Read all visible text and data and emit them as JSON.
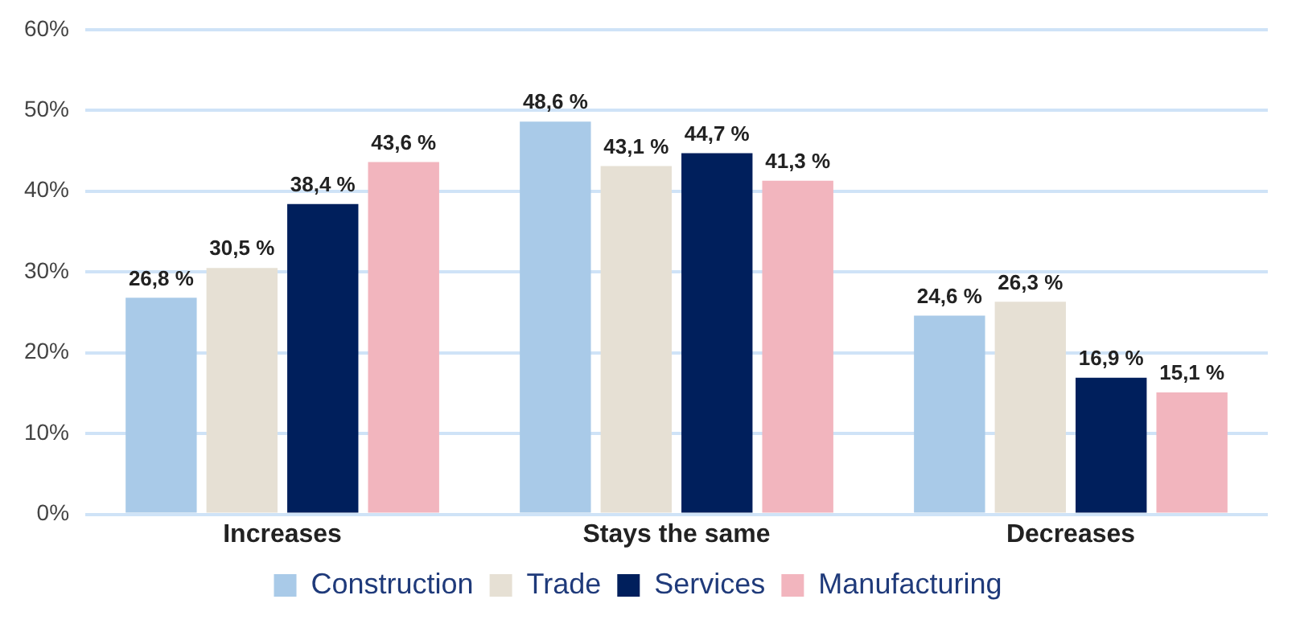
{
  "chart_data": {
    "type": "bar",
    "categories": [
      "Increases",
      "Stays the same",
      "Decreases"
    ],
    "series": [
      {
        "name": "Construction",
        "color": "#a9cae8",
        "values": [
          26.8,
          48.6,
          24.6
        ],
        "value_labels": [
          "26,8 %",
          "48,6 %",
          "24,6 %"
        ]
      },
      {
        "name": "Trade",
        "color": "#e6e0d4",
        "values": [
          30.5,
          43.1,
          26.3
        ],
        "value_labels": [
          "30,5 %",
          "43,1 %",
          "26,3 %"
        ]
      },
      {
        "name": "Services",
        "color": "#001f5c",
        "values": [
          38.4,
          44.7,
          16.9
        ],
        "value_labels": [
          "38,4 %",
          "44,7 %",
          "16,9 %"
        ]
      },
      {
        "name": "Manufacturing",
        "color": "#f2b5be",
        "values": [
          43.6,
          41.3,
          15.1
        ],
        "value_labels": [
          "43,6 %",
          "41,3 %",
          "15,1 %"
        ]
      }
    ],
    "ylim": [
      0,
      60
    ],
    "yticks": [
      {
        "value": 0,
        "label": "0%"
      },
      {
        "value": 10,
        "label": "10%"
      },
      {
        "value": 20,
        "label": "20%"
      },
      {
        "value": 30,
        "label": "30%"
      },
      {
        "value": 40,
        "label": "40%"
      },
      {
        "value": 50,
        "label": "50%"
      },
      {
        "value": 60,
        "label": "60%"
      }
    ],
    "grid": "y",
    "legend": "bottom"
  }
}
